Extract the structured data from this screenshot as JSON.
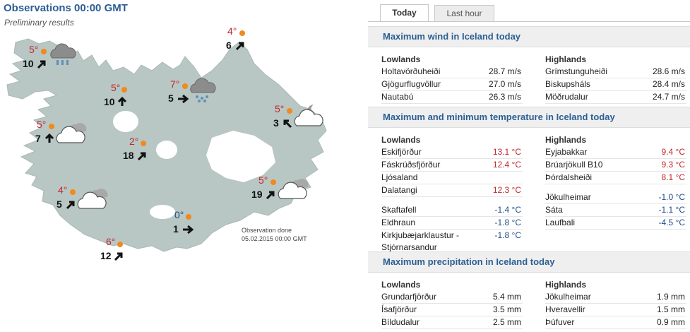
{
  "map": {
    "title": "Observations 00:00 GMT",
    "subtitle": "Preliminary results",
    "observation_done_line1": "Observation done",
    "observation_done_line2": "05.02.2015 00:00 GMT",
    "stations": [
      {
        "temp": "5°",
        "wind": "10",
        "temp_color": "red",
        "weather": "cloud-rain-icon"
      },
      {
        "temp": "4°",
        "wind": "6",
        "temp_color": "red",
        "weather": ""
      },
      {
        "temp": "5°",
        "wind": "10",
        "temp_color": "red",
        "weather": ""
      },
      {
        "temp": "7°",
        "wind": "5",
        "temp_color": "red",
        "weather": "cloud-snow-icon"
      },
      {
        "temp": "5°",
        "wind": "3",
        "temp_color": "red",
        "weather": "moon-cloud-icon"
      },
      {
        "temp": "5°",
        "wind": "7",
        "temp_color": "red",
        "weather": "cloud-icon"
      },
      {
        "temp": "2°",
        "wind": "18",
        "temp_color": "red",
        "weather": ""
      },
      {
        "temp": "4°",
        "wind": "5",
        "temp_color": "red",
        "weather": "cloud-icon"
      },
      {
        "temp": "5°",
        "wind": "19",
        "temp_color": "red",
        "weather": "cloud-icon"
      },
      {
        "temp": "0°",
        "wind": "1",
        "temp_color": "blue",
        "weather": ""
      },
      {
        "temp": "6°",
        "wind": "12",
        "temp_color": "red",
        "weather": ""
      }
    ]
  },
  "tabs": [
    {
      "label": "Today",
      "active": true
    },
    {
      "label": "Last hour",
      "active": false
    }
  ],
  "wind": {
    "title": "Maximum wind in Iceland today",
    "lowlands_label": "Lowlands",
    "highlands_label": "Highlands",
    "lowlands": [
      {
        "name": "Holtavörðuheiði",
        "value": "28.7 m/s"
      },
      {
        "name": "Gjögurflugvöllur",
        "value": "27.0 m/s"
      },
      {
        "name": "Nautabú",
        "value": "26.3 m/s"
      }
    ],
    "highlands": [
      {
        "name": "Grímstunguheiði",
        "value": "28.6 m/s"
      },
      {
        "name": "Biskupsháls",
        "value": "28.4 m/s"
      },
      {
        "name": "Möðrudalur",
        "value": "24.7 m/s"
      }
    ]
  },
  "temperature": {
    "title": "Maximum and minimum temperature in Iceland today",
    "lowlands_label": "Lowlands",
    "highlands_label": "Highlands",
    "lowlands_max": [
      {
        "name": "Eskifjörður",
        "value": "13.1 °C"
      },
      {
        "name": "Fáskrúðsfjörður",
        "value": "12.4 °C"
      },
      {
        "name": "Ljósaland",
        "value": ""
      },
      {
        "name": "Dalatangi",
        "value": "12.3 °C"
      }
    ],
    "lowlands_min": [
      {
        "name": "Skaftafell",
        "value": "-1.4 °C"
      },
      {
        "name": "Eldhraun",
        "value": "-1.8 °C"
      },
      {
        "name": "Kirkjubæjarklaustur -",
        "value": "-1.8 °C"
      },
      {
        "name": "Stjórnarsandur",
        "value": ""
      }
    ],
    "highlands_max": [
      {
        "name": "Eyjabakkar",
        "value": "9.4 °C"
      },
      {
        "name": "Brúarjökull B10",
        "value": "9.3 °C"
      },
      {
        "name": "Þórdalsheiði",
        "value": "8.1 °C"
      }
    ],
    "highlands_min": [
      {
        "name": "Jökulheimar",
        "value": "-1.0 °C"
      },
      {
        "name": "Sáta",
        "value": "-1.1 °C"
      },
      {
        "name": "Laufbali",
        "value": "-4.5 °C"
      }
    ]
  },
  "precipitation": {
    "title": "Maximum precipitation in Iceland today",
    "lowlands_label": "Lowlands",
    "highlands_label": "Highlands",
    "lowlands": [
      {
        "name": "Grundarfjörður",
        "value": "5.4 mm"
      },
      {
        "name": "Ísafjörður",
        "value": "3.5 mm"
      },
      {
        "name": "Bíldudalur",
        "value": "2.5 mm"
      }
    ],
    "highlands": [
      {
        "name": "Jökulheimar",
        "value": "1.9 mm"
      },
      {
        "name": "Hveravellir",
        "value": "1.5 mm"
      },
      {
        "name": "Þúfuver",
        "value": "0.9 mm"
      }
    ]
  },
  "colors": {
    "title_blue": "#2c5f94",
    "map_land": "#b8c7c3",
    "warm": "#c0272d",
    "cold": "#1f4e8a",
    "station_dot": "#f08a1c"
  }
}
